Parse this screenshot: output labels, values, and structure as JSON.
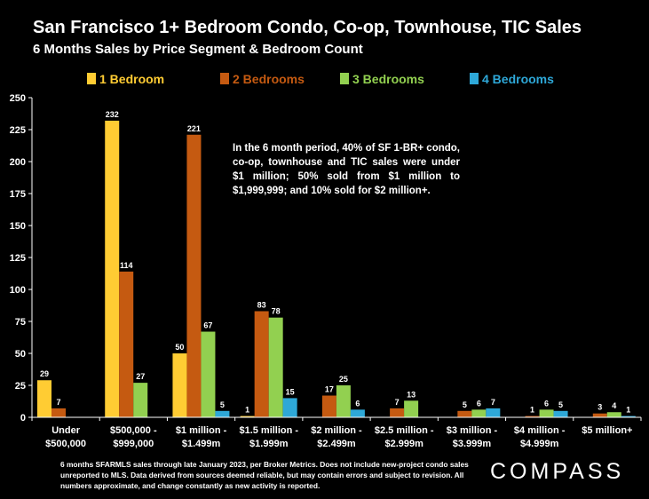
{
  "header": {
    "title": "San Francisco 1+ Bedroom Condo, Co-op, Townhouse, TIC Sales",
    "subtitle": "6 Months Sales by Price Segment & Bedroom Count"
  },
  "annotation": "In the 6 month period, 40% of SF 1-BR+ condo, co-op, townhouse and TIC sales were under $1 million; 50% sold from $1 million to $1,999,999; and 10% sold for $2 million+.",
  "footnote": "6  months SFARMLS sales through late January 2023, per Broker Metrics. Does not include new-project condo sales unreported to MLS. Data derived from sources deemed reliable, but may contain errors and subject to revision. All numbers approximate, and change constantly as new activity is reported.",
  "logo": "COMPASS",
  "colors": {
    "background": "#000000",
    "text": "#ffffff",
    "one_bedroom": "#FFCC33",
    "two_bedrooms": "#C55A11",
    "three_bedrooms": "#92D050",
    "four_bedrooms": "#2EA8D8"
  },
  "chart_data": {
    "type": "bar",
    "categories": [
      [
        "Under",
        "$500,000"
      ],
      [
        "$500,000 -",
        "$999,000"
      ],
      [
        "$1 million -",
        "$1.499m"
      ],
      [
        "$1.5 million -",
        "$1.999m"
      ],
      [
        "$2 million -",
        "$2.499m"
      ],
      [
        "$2.5 million -",
        "$2.999m"
      ],
      [
        "$3 million -",
        "$3.999m"
      ],
      [
        "$4 million -",
        "$4.999m"
      ],
      [
        "$5 million+"
      ]
    ],
    "series": [
      {
        "name": "1 Bedroom",
        "color": "#FFCC33",
        "values": [
          29,
          232,
          50,
          1,
          null,
          null,
          null,
          null,
          null
        ]
      },
      {
        "name": "2 Bedrooms",
        "color": "#C55A11",
        "values": [
          7,
          114,
          221,
          83,
          17,
          7,
          5,
          1,
          3
        ]
      },
      {
        "name": "3 Bedrooms",
        "color": "#92D050",
        "values": [
          null,
          27,
          67,
          78,
          25,
          13,
          6,
          6,
          4
        ]
      },
      {
        "name": "4 Bedrooms",
        "color": "#2EA8D8",
        "values": [
          null,
          null,
          5,
          15,
          6,
          null,
          7,
          5,
          1
        ]
      }
    ],
    "ylim": [
      0,
      250
    ],
    "yticks": [
      0,
      25,
      50,
      75,
      100,
      125,
      150,
      175,
      200,
      225,
      250
    ],
    "legend_position": "top",
    "grid": false
  }
}
